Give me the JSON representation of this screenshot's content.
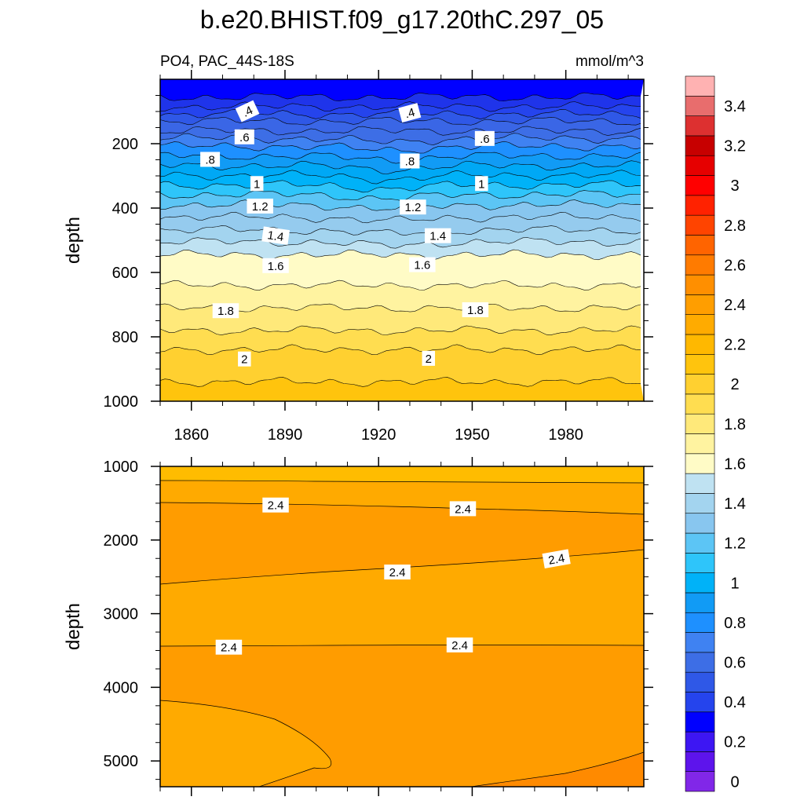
{
  "chart_data": [
    {
      "type": "contour",
      "title": "b.e20.BHIST.f09_g17.20thC.297_05",
      "subtitle_left": "PO4, PAC_44S-18S",
      "subtitle_right": "mmol/m^3",
      "ylabel": "depth",
      "xlim": [
        1850,
        2005
      ],
      "ylim": [
        1000,
        0
      ],
      "xticks": [
        "1860",
        "1890",
        "1920",
        "1950",
        "1980"
      ],
      "xtick_values": [
        1860,
        1890,
        1920,
        1950,
        1980
      ],
      "yticks": [
        "200",
        "400",
        "600",
        "800",
        "1000"
      ],
      "ytick_values": [
        200,
        400,
        600,
        800,
        1000
      ],
      "contour_levels": [
        0.2,
        0.3,
        0.4,
        0.5,
        0.6,
        0.7,
        0.8,
        0.9,
        1.0,
        1.1,
        1.2,
        1.3,
        1.4,
        1.5,
        1.6,
        1.7,
        1.8,
        1.9,
        2.0,
        2.1,
        2.2
      ],
      "level_depths": [
        55,
        85,
        108,
        130,
        160,
        183,
        208,
        238,
        268,
        298,
        328,
        358,
        390,
        428,
        468,
        505,
        545,
        640,
        710,
        780,
        840,
        940
      ],
      "contour_labels": [
        {
          "text": ".4",
          "year": 1878,
          "depth": 100,
          "angle": -25
        },
        {
          "text": ".4",
          "year": 1930,
          "depth": 105,
          "angle": -15
        },
        {
          "text": ".6",
          "year": 1877,
          "depth": 180,
          "angle": 0
        },
        {
          "text": ".6",
          "year": 1954,
          "depth": 185,
          "angle": 0
        },
        {
          "text": ".8",
          "year": 1866,
          "depth": 250,
          "angle": 0
        },
        {
          "text": ".8",
          "year": 1930,
          "depth": 255,
          "angle": 0
        },
        {
          "text": "1",
          "year": 1881,
          "depth": 325,
          "angle": 0
        },
        {
          "text": "1",
          "year": 1953,
          "depth": 325,
          "angle": 0
        },
        {
          "text": "1.2",
          "year": 1882,
          "depth": 395,
          "angle": 0
        },
        {
          "text": "1.2",
          "year": 1931,
          "depth": 398,
          "angle": 0
        },
        {
          "text": "1.4",
          "year": 1887,
          "depth": 487,
          "angle": 8
        },
        {
          "text": "1.4",
          "year": 1939,
          "depth": 487,
          "angle": 0
        },
        {
          "text": "1.6",
          "year": 1887,
          "depth": 580,
          "angle": 0
        },
        {
          "text": "1.6",
          "year": 1934,
          "depth": 577,
          "angle": 0
        },
        {
          "text": "1.8",
          "year": 1871,
          "depth": 720,
          "angle": 0
        },
        {
          "text": "1.8",
          "year": 1951,
          "depth": 717,
          "angle": 0
        },
        {
          "text": "2",
          "year": 1877,
          "depth": 870,
          "angle": 0
        },
        {
          "text": "2",
          "year": 1936,
          "depth": 868,
          "angle": 0
        }
      ]
    },
    {
      "type": "contour",
      "ylabel": "depth",
      "xlim": [
        1850,
        2005
      ],
      "ylim": [
        5350,
        1000
      ],
      "yticks": [
        "1000",
        "2000",
        "3000",
        "4000",
        "5000"
      ],
      "ytick_values": [
        1000,
        2000,
        3000,
        4000,
        5000
      ],
      "bands": [
        {
          "value_range": [
            2.2,
            2.3
          ],
          "color": "#ffc400"
        },
        {
          "value_range": [
            2.3,
            2.4
          ],
          "color": "#ffaa00"
        },
        {
          "value_range": [
            2.4,
            2.5
          ],
          "color": "#ff9c00"
        },
        {
          "value_range": [
            2.5,
            2.6
          ],
          "color": "#ff8a00"
        }
      ],
      "contour_labels": [
        {
          "text": "2.4",
          "year": 1887,
          "depth": 1530,
          "angle": 0
        },
        {
          "text": "2.4",
          "year": 1947,
          "depth": 1580,
          "angle": 0
        },
        {
          "text": "2.4",
          "year": 1926,
          "depth": 2440,
          "angle": 0
        },
        {
          "text": "2.4",
          "year": 1977,
          "depth": 2260,
          "angle": -10
        },
        {
          "text": "2.4",
          "year": 1872,
          "depth": 3460,
          "angle": 0
        },
        {
          "text": "2.4",
          "year": 1946,
          "depth": 3430,
          "angle": 0
        }
      ]
    }
  ],
  "colorbar": {
    "labels": [
      "0",
      "0.2",
      "0.4",
      "0.6",
      "0.8",
      "1",
      "1.2",
      "1.4",
      "1.6",
      "1.8",
      "2",
      "2.2",
      "2.4",
      "2.6",
      "2.8",
      "3",
      "3.2",
      "3.4"
    ],
    "colors_bottom_to_top": [
      "#8127e8",
      "#5d14ec",
      "#3d16f3",
      "#0000ff",
      "#2544ed",
      "#2f58e7",
      "#3d6ee6",
      "#3f82f2",
      "#1e90ff",
      "#119bf5",
      "#00b2f8",
      "#2ec5fa",
      "#5cc5f5",
      "#88c6ef",
      "#a3d4ef",
      "#bfe2f2",
      "#fffbc6",
      "#fff3a0",
      "#ffe97a",
      "#ffdd50",
      "#ffd030",
      "#ffc40d",
      "#ffb800",
      "#ffab00",
      "#ff9e00",
      "#ff8f00",
      "#ff7b00",
      "#ff6400",
      "#ff4400",
      "#ff2200",
      "#ff0000",
      "#e60000",
      "#c70000",
      "#dd3030",
      "#e86d6d",
      "#ffb2b2"
    ]
  }
}
